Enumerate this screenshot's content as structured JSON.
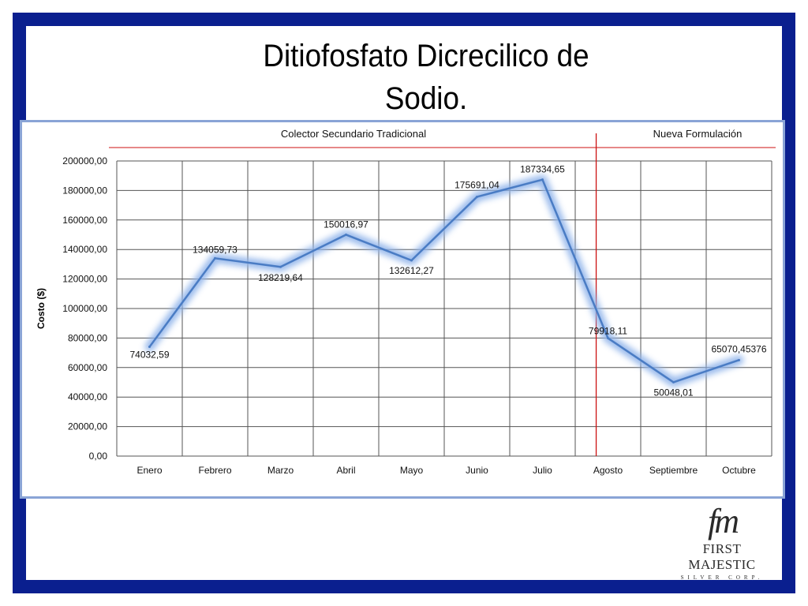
{
  "slide": {
    "title_line1": "Ditiofosfato Dicrecilico de",
    "title_line2": "Sodio.",
    "border_color": "#0a1f8f"
  },
  "logo": {
    "mark": "fm",
    "name": "FIRST MAJESTIC",
    "subtitle": "SILVER CORP."
  },
  "chart_data": {
    "type": "line",
    "categories": [
      "Enero",
      "Febrero",
      "Marzo",
      "Abril",
      "Mayo",
      "Junio",
      "Julio",
      "Agosto",
      "Septiembre",
      "Octubre"
    ],
    "series": [
      {
        "values": [
          74032.59,
          134059.73,
          128219.64,
          150016.97,
          132612.27,
          175691.04,
          187334.65,
          79918.11,
          50048.01,
          65070.45376
        ],
        "labels": [
          "74032,59",
          "134059,73",
          "128219,64",
          "150016,97",
          "132612,27",
          "175691,04",
          "187334,65",
          "79918,11",
          "50048,01",
          "65070,45376"
        ],
        "color": "#4a7cc4"
      }
    ],
    "ylabel": "Costo ($)",
    "xlabel": "",
    "ylim": [
      0,
      200000
    ],
    "yticks": [
      "0,00",
      "20000,00",
      "40000,00",
      "60000,00",
      "80000,00",
      "100000,00",
      "120000,00",
      "140000,00",
      "160000,00",
      "180000,00",
      "200000,00"
    ],
    "grid": true,
    "annotations": {
      "left_section": "Colector Secundario Tradicional",
      "right_section": "Nueva Formulación",
      "divider_color": "#cc1111",
      "divider_between": [
        "Julio",
        "Agosto"
      ]
    }
  }
}
